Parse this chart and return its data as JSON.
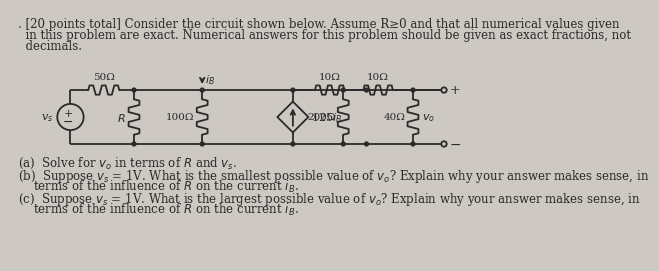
{
  "bg_color": "#cdc8c2",
  "text_color": "#2a2a2a",
  "title_line1": ". [20 points total] Consider the circuit shown below. Assume R≥0 and that all numerical values given",
  "title_line2": "  in this problem are exact. Numerical answers for this problem should be given as exact fractions, not",
  "title_line3": "  decimals.",
  "part_a_text": "(a)  Solve for v",
  "part_a_sub": "o",
  "part_a_rest": " in terms of R and v",
  "part_a_sub2": "s",
  "part_a_end": ".",
  "part_b_line1": "(b)  Suppose v",
  "part_b_sub1": "s",
  "part_b_rest1": " = 1V. What is the smallest possible value of v",
  "part_b_sub2": "o",
  "part_b_rest2": "? Explain why your answer makes sense, in",
  "part_b_line2": "      terms of the influence of R on the current i",
  "part_b_sub3": "B",
  "part_b_end": ".",
  "part_c_line1": "(c)  Suppose v",
  "part_c_sub1": "s",
  "part_c_rest1": " = 1V. What is the largest possible value of v",
  "part_c_sub2": "o",
  "part_c_rest2": "? Explain why your answer makes sense, in",
  "part_c_line2": "      terms of the influence of R on the current i",
  "part_c_sub3": "B",
  "part_c_end": "."
}
